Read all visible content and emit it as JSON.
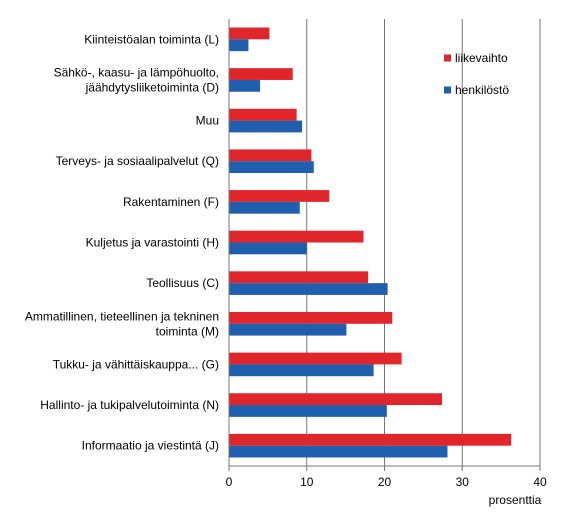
{
  "chart_data": {
    "type": "bar",
    "orientation": "horizontal",
    "categories": [
      [
        "Kiinteistöalan toiminta (L)"
      ],
      [
        "Sähkö-, kaasu- ja lämpöhuolto,",
        "jäähdytysliiketoiminta (D)"
      ],
      [
        "Muu"
      ],
      [
        "Terveys- ja sosiaalipalvelut (Q)"
      ],
      [
        "Rakentaminen (F)"
      ],
      [
        "Kuljetus ja varastointi (H)"
      ],
      [
        "Teollisuus (C)"
      ],
      [
        "Ammatillinen, tieteellinen ja tekninen",
        "toiminta (M)"
      ],
      [
        "Tukku- ja vähittäiskauppa... (G)"
      ],
      [
        "Hallinto- ja tukipalvelutoiminta (N)"
      ],
      [
        "Informaatio ja viestintä (J)"
      ]
    ],
    "series": [
      {
        "name": "liikevaihto",
        "color": "#e0262b",
        "values": [
          5.2,
          8.2,
          8.7,
          10.6,
          12.9,
          17.3,
          17.9,
          21.0,
          22.2,
          27.4,
          36.3
        ]
      },
      {
        "name": "henkilöstö",
        "color": "#1f5fae",
        "values": [
          2.5,
          4.0,
          9.4,
          10.9,
          9.1,
          10.0,
          20.4,
          15.1,
          18.6,
          20.3,
          28.1
        ]
      }
    ],
    "xlabel": "prosenttia",
    "ylabel": "",
    "xlim": [
      0,
      40
    ],
    "xticks": [
      0,
      10,
      20,
      30,
      40
    ],
    "grid": "vertical",
    "legend": "top-right"
  }
}
